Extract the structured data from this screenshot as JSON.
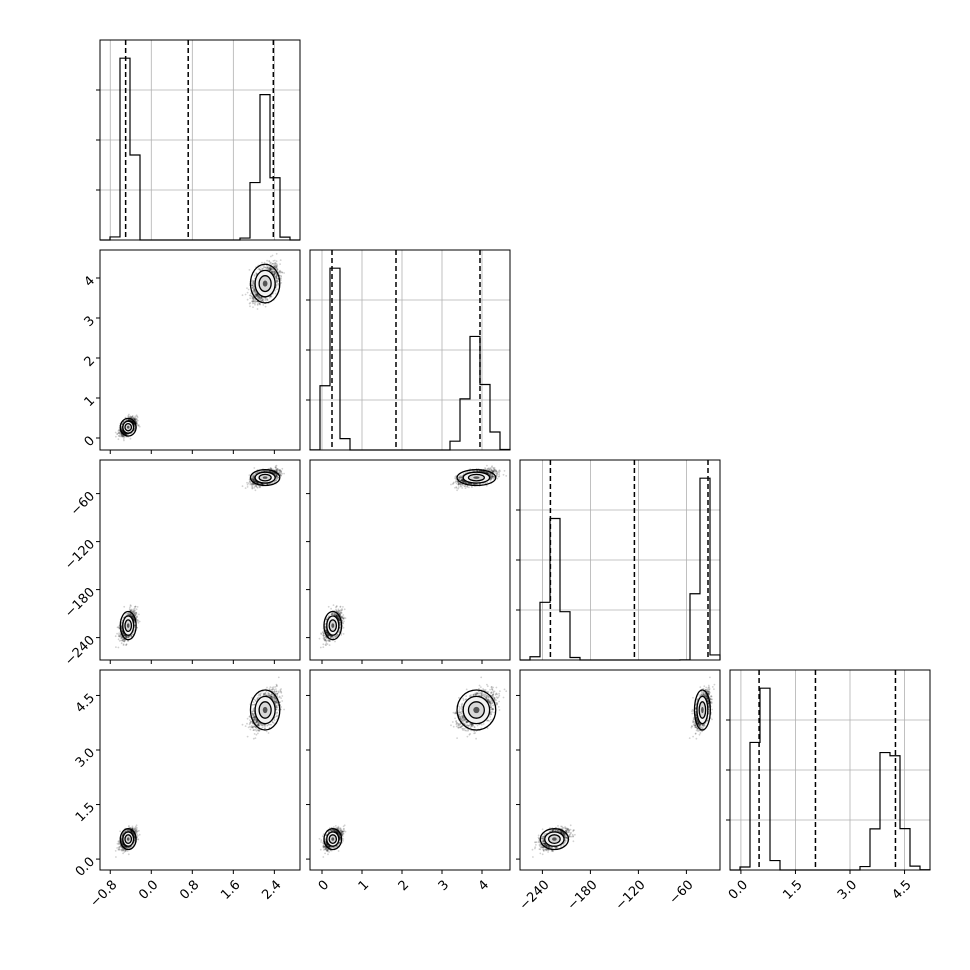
{
  "chart_data": {
    "type": "scatter",
    "variant": "corner plot (pairwise 2D histograms with 1D marginal histograms)",
    "grid": true,
    "dimensions": [
      {
        "index": 0,
        "range": [
          -1.0,
          2.9
        ],
        "ticks": [
          "−0.8",
          "0.0",
          "0.8",
          "1.6",
          "2.4"
        ],
        "tick_values": [
          -0.8,
          0.0,
          0.8,
          1.6,
          2.4
        ],
        "quantile_lines": [
          -0.5,
          0.72,
          2.38
        ],
        "modes": [
          {
            "center": -0.45,
            "sd": 0.07,
            "weight": 0.5
          },
          {
            "center": 2.22,
            "sd": 0.13,
            "weight": 0.5
          }
        ]
      },
      {
        "index": 1,
        "range": [
          -0.3,
          4.7
        ],
        "ticks": [
          "0",
          "1",
          "2",
          "3",
          "4"
        ],
        "tick_values": [
          0,
          1,
          2,
          3,
          4
        ],
        "quantile_lines": [
          0.25,
          1.85,
          3.95
        ],
        "modes": [
          {
            "center": 0.27,
            "sd": 0.1,
            "weight": 0.5
          },
          {
            "center": 3.86,
            "sd": 0.22,
            "weight": 0.5
          }
        ]
      },
      {
        "index": 2,
        "range": [
          -268,
          -18
        ],
        "ticks": [
          "−240",
          "−180",
          "−120",
          "−60"
        ],
        "tick_values": [
          -240,
          -180,
          -120,
          -60
        ],
        "quantile_lines": [
          -230,
          -125,
          -33
        ],
        "modes": [
          {
            "center": -225,
            "sd": 8,
            "weight": 0.5
          },
          {
            "center": -40,
            "sd": 4.5,
            "weight": 0.5
          }
        ]
      },
      {
        "index": 3,
        "range": [
          -0.3,
          5.2
        ],
        "ticks": [
          "0.0",
          "1.5",
          "3.0",
          "4.5"
        ],
        "tick_values": [
          0.0,
          1.5,
          3.0,
          4.5
        ],
        "quantile_lines": [
          0.5,
          2.05,
          4.25
        ],
        "modes": [
          {
            "center": 0.55,
            "sd": 0.13,
            "weight": 0.5
          },
          {
            "center": 4.1,
            "sd": 0.25,
            "weight": 0.5
          }
        ]
      }
    ],
    "clusters_2d": [
      {
        "name": "mode A",
        "means": [
          -0.45,
          0.27,
          -40,
          0.55
        ],
        "weight": 0.5
      },
      {
        "name": "mode B",
        "means": [
          2.22,
          3.86,
          -225,
          4.1
        ],
        "weight": 0.5
      }
    ]
  }
}
